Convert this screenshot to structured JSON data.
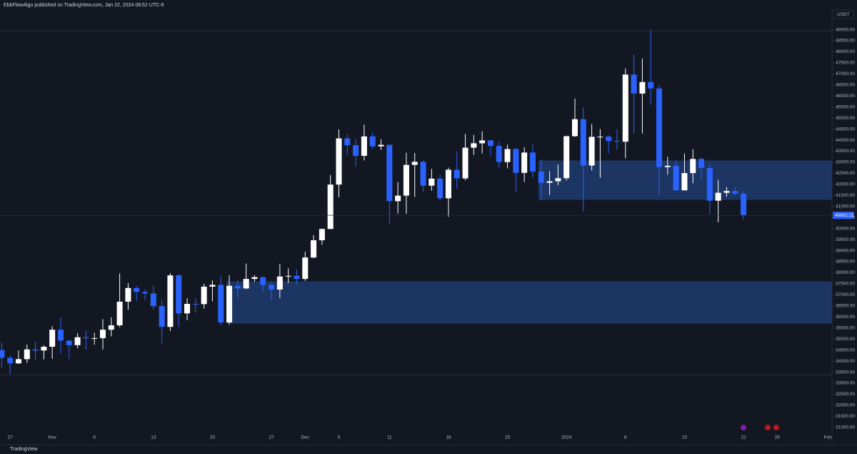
{
  "chart_data": {
    "type": "candlestick",
    "header": "EbbFlowAlgo published on TradingView.com, Jan 22, 2024 08:52 UTC-8",
    "currency": "USDT",
    "brand": "TradingView",
    "up_color": "#ffffff",
    "down_color": "#2962ff",
    "categories": [
      "Oct 26",
      "Oct 27",
      "Oct 28",
      "Oct 29",
      "Oct 30",
      "Oct 31",
      "Nov 1",
      "Nov 2",
      "Nov 3",
      "Nov 4",
      "Nov 5",
      "Nov 6",
      "Nov 7",
      "Nov 8",
      "Nov 9",
      "Nov 10",
      "Nov 11",
      "Nov 12",
      "Nov 13",
      "Nov 14",
      "Nov 15",
      "Nov 16",
      "Nov 17",
      "Nov 18",
      "Nov 19",
      "Nov 20",
      "Nov 21",
      "Nov 22",
      "Nov 23",
      "Nov 24",
      "Nov 25",
      "Nov 26",
      "Nov 27",
      "Nov 28",
      "Nov 29",
      "Nov 30",
      "Dec 1",
      "Dec 2",
      "Dec 3",
      "Dec 4",
      "Dec 5",
      "Dec 6",
      "Dec 7",
      "Dec 8",
      "Dec 9",
      "Dec 10",
      "Dec 11",
      "Dec 12",
      "Dec 13",
      "Dec 14",
      "Dec 15",
      "Dec 16",
      "Dec 17",
      "Dec 18",
      "Dec 19",
      "Dec 20",
      "Dec 21",
      "Dec 22",
      "Dec 23",
      "Dec 24",
      "Dec 25",
      "Dec 26",
      "Dec 27",
      "Dec 28",
      "Dec 29",
      "Dec 30",
      "Dec 31",
      "Jan 1",
      "Jan 2",
      "Jan 3",
      "Jan 4",
      "Jan 5",
      "Jan 6",
      "Jan 7",
      "Jan 8",
      "Jan 9",
      "Jan 10",
      "Jan 11",
      "Jan 12",
      "Jan 13",
      "Jan 14",
      "Jan 15",
      "Jan 16",
      "Jan 17",
      "Jan 18",
      "Jan 19",
      "Jan 20",
      "Jan 21",
      "Jan 22"
    ],
    "open": [
      34500,
      34150,
      33900,
      34090,
      34530,
      34480,
      34650,
      35420,
      34930,
      34720,
      35080,
      35040,
      35040,
      35420,
      35620,
      36690,
      37310,
      37130,
      37060,
      36490,
      35550,
      37880,
      36160,
      36590,
      36580,
      37370,
      37450,
      35750,
      37410,
      37290,
      37720,
      37800,
      37450,
      37240,
      37830,
      37860,
      37720,
      38690,
      39470,
      39980,
      41990,
      44080,
      43770,
      43290,
      44170,
      43720,
      43790,
      41240,
      41490,
      42880,
      43020,
      41940,
      42260,
      41370,
      42660,
      42270,
      43660,
      43860,
      43990,
      43740,
      43010,
      43600,
      42520,
      43440,
      42580,
      42070,
      42140,
      42280,
      44180,
      44950,
      42850,
      44150,
      44160,
      43960,
      43930,
      46970,
      46110,
      46630,
      46340,
      42780,
      42840,
      41730,
      42510,
      43150,
      42740,
      41260,
      41620,
      41700,
      41580
    ],
    "high": [
      34840,
      34250,
      34480,
      34750,
      34880,
      34720,
      35580,
      35980,
      34940,
      35270,
      35380,
      35280,
      35900,
      35980,
      37970,
      37530,
      37400,
      37230,
      37420,
      36760,
      37980,
      37930,
      36850,
      36850,
      37500,
      37650,
      37850,
      37890,
      37650,
      38420,
      37890,
      37830,
      37580,
      38400,
      38200,
      38150,
      38950,
      39700,
      40000,
      42420,
      44490,
      44290,
      44050,
      44700,
      44360,
      44040,
      43800,
      42100,
      43430,
      43420,
      43090,
      42700,
      42440,
      42760,
      43500,
      44280,
      44240,
      44400,
      44020,
      43950,
      43800,
      43650,
      43680,
      43800,
      43130,
      42600,
      42900,
      44200,
      45880,
      45500,
      44730,
      44500,
      44230,
      44490,
      47250,
      47890,
      47700,
      48970,
      46500,
      43250,
      43080,
      43400,
      43580,
      43200,
      42930,
      42200,
      41870,
      41880,
      41690
    ],
    "low": [
      33700,
      33400,
      33870,
      33920,
      34060,
      34080,
      34100,
      34330,
      34100,
      34580,
      34530,
      34740,
      34530,
      35120,
      35540,
      36320,
      36720,
      36750,
      36330,
      34800,
      35360,
      35550,
      35850,
      36190,
      36380,
      36710,
      35630,
      35650,
      36870,
      37250,
      37600,
      37150,
      36750,
      36860,
      37530,
      37500,
      37630,
      38650,
      39270,
      39980,
      41420,
      43330,
      42820,
      43080,
      43580,
      43560,
      40220,
      40680,
      40670,
      41430,
      41660,
      41710,
      41250,
      40530,
      41800,
      42180,
      43330,
      43400,
      43300,
      42750,
      42720,
      41640,
      42100,
      42300,
      41300,
      41520,
      41960,
      42180,
      44150,
      40750,
      42630,
      42300,
      43400,
      43580,
      43180,
      44300,
      44300,
      45600,
      41500,
      42440,
      41720,
      41720,
      42050,
      42200,
      40680,
      40280,
      41440,
      41500,
      40410
    ],
    "close": [
      34150,
      33900,
      34090,
      34530,
      34480,
      34650,
      35420,
      34930,
      34720,
      35080,
      35040,
      35040,
      35420,
      35620,
      36690,
      37310,
      37130,
      37060,
      36490,
      35550,
      37880,
      36160,
      36590,
      36580,
      37370,
      37450,
      35750,
      37410,
      37290,
      37720,
      37800,
      37450,
      37240,
      37830,
      37860,
      37720,
      38690,
      39470,
      39980,
      41990,
      44080,
      43770,
      43290,
      44170,
      43720,
      43790,
      41240,
      41490,
      42880,
      43020,
      41940,
      42260,
      41370,
      42660,
      42270,
      43660,
      43860,
      43990,
      43740,
      43010,
      43600,
      42520,
      43440,
      42580,
      42070,
      42140,
      42280,
      44180,
      44950,
      42850,
      44150,
      44160,
      43960,
      43930,
      46970,
      46110,
      46630,
      46340,
      42780,
      42840,
      41730,
      42510,
      43150,
      42740,
      41260,
      41620,
      41700,
      41580,
      40601.11
    ],
    "last_price": 40601.11,
    "zones": [
      {
        "start": "Nov 22",
        "top": 37610,
        "bottom": 35700,
        "color": "#1c3562"
      },
      {
        "start": "Dec 29",
        "top": 43080,
        "bottom": 41300,
        "color": "#1c3562"
      }
    ],
    "xlim": [
      -0.2,
      98.5
    ],
    "xticks": [
      {
        "value": 1,
        "label": "27"
      },
      {
        "value": 6,
        "label": "Nov"
      },
      {
        "value": 11,
        "label": "6"
      },
      {
        "value": 18,
        "label": "13"
      },
      {
        "value": 25,
        "label": "20"
      },
      {
        "value": 32,
        "label": "27"
      },
      {
        "value": 36,
        "label": "Dec"
      },
      {
        "value": 40,
        "label": "5"
      },
      {
        "value": 46,
        "label": "11"
      },
      {
        "value": 53,
        "label": "18"
      },
      {
        "value": 60,
        "label": "25"
      },
      {
        "value": 67,
        "label": "2024"
      },
      {
        "value": 74,
        "label": "8"
      },
      {
        "value": 81,
        "label": "15"
      },
      {
        "value": 88,
        "label": "22"
      },
      {
        "value": 92,
        "label": "26"
      },
      {
        "value": 98,
        "label": "Feb"
      }
    ],
    "ylim": [
      30100,
      49050
    ],
    "yticks": [
      {
        "value": 31000,
        "label": "31000.00"
      },
      {
        "value": 31500,
        "label": "31500.00"
      },
      {
        "value": 32000,
        "label": "32000.00"
      },
      {
        "value": 32500,
        "label": "32500.00"
      },
      {
        "value": 33000,
        "label": "33000.00"
      },
      {
        "value": 33500,
        "label": "33500.00"
      },
      {
        "value": 34000,
        "label": "34000.00"
      },
      {
        "value": 34500,
        "label": "34500.00"
      },
      {
        "value": 35000,
        "label": "35000.00"
      },
      {
        "value": 35500,
        "label": "35500.00"
      },
      {
        "value": 36000,
        "label": "36000.00"
      },
      {
        "value": 36500,
        "label": "36500.00"
      },
      {
        "value": 37000,
        "label": "37000.00"
      },
      {
        "value": 37500,
        "label": "37500.00"
      },
      {
        "value": 38000,
        "label": "38000.00"
      },
      {
        "value": 38500,
        "label": "38500.00"
      },
      {
        "value": 39000,
        "label": "39000.00"
      },
      {
        "value": 39500,
        "label": "39500.00"
      },
      {
        "value": 40000,
        "label": "40000.00"
      },
      {
        "value": 40500,
        "label": "40500.00"
      },
      {
        "value": 41000,
        "label": "41000.00"
      },
      {
        "value": 41500,
        "label": "41500.00"
      },
      {
        "value": 42000,
        "label": "42000.00"
      },
      {
        "value": 42500,
        "label": "42500.00"
      },
      {
        "value": 43000,
        "label": "43000.00"
      },
      {
        "value": 43500,
        "label": "43500.00"
      },
      {
        "value": 44000,
        "label": "44000.00"
      },
      {
        "value": 44500,
        "label": "44500.00"
      },
      {
        "value": 45000,
        "label": "45000.00"
      },
      {
        "value": 45500,
        "label": "45500.00"
      },
      {
        "value": 46000,
        "label": "46000.00"
      },
      {
        "value": 46500,
        "label": "46500.00"
      },
      {
        "value": 47000,
        "label": "47000.00"
      },
      {
        "value": 47500,
        "label": "47500.00"
      },
      {
        "value": 48000,
        "label": "48000.00"
      },
      {
        "value": 48500,
        "label": "48500.00"
      },
      {
        "value": 49000,
        "label": "49000.00"
      }
    ]
  }
}
